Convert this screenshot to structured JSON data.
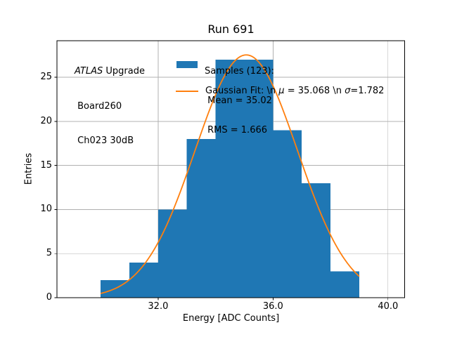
{
  "title": "Run 691",
  "annotation": {
    "line1_italic": "ATLAS",
    "line1_rest": " Upgrade",
    "line2": " Board260",
    "line3": " Ch023 30dB"
  },
  "legend": {
    "samples_line": "Samples (123):",
    "mean_line": " Mean = 35.02",
    "rms_line": " RMS = 1.666",
    "fit_segments": [
      {
        "text": "Gaussian Fit: \\n ",
        "italic": false
      },
      {
        "text": "μ",
        "italic": true
      },
      {
        "text": " = 35.068 \\n ",
        "italic": false
      },
      {
        "text": "σ",
        "italic": true
      },
      {
        "text": "=1.782",
        "italic": false
      }
    ]
  },
  "chart_data": {
    "type": "bar",
    "subtype": "histogram-with-gaussian-fit",
    "title": "Run 691",
    "xlabel": "Energy [ADC Counts]",
    "ylabel": "Entries",
    "bin_edges": [
      30,
      31,
      32,
      33,
      34,
      35,
      36,
      37,
      38,
      39
    ],
    "counts": [
      2,
      4,
      10,
      18,
      27,
      27,
      19,
      13,
      3
    ],
    "samples": 123,
    "mean": 35.02,
    "rms": 1.666,
    "fit": {
      "type": "gaussian",
      "mu": 35.068,
      "sigma": 1.782,
      "amplitude": 27.54,
      "x_range": [
        30,
        39
      ]
    },
    "xlim": [
      28.48,
      40.58
    ],
    "ylim": [
      0,
      29.15
    ],
    "xticks": [
      32.0,
      36.0,
      40.0
    ],
    "xtick_labels": [
      "32.0",
      "36.0",
      "40.0"
    ],
    "yticks": [
      0,
      5,
      10,
      15,
      20,
      25
    ],
    "ytick_labels": [
      "0",
      "5",
      "10",
      "15",
      "20",
      "25"
    ],
    "grid": true,
    "legend_position": "upper center, frameless",
    "legend_entries": [
      {
        "handle": "patch",
        "color": "#1f77b4",
        "label": "Samples (123):\n Mean = 35.02\n RMS = 1.666"
      },
      {
        "handle": "line",
        "color": "#ff7f0e",
        "label": "Gaussian Fit: \\n μ = 35.068 \\n σ=1.782"
      }
    ],
    "annotation_text": "ATLAS Upgrade\n Board260\n Ch023 30dB",
    "colors": {
      "hist": "#1f77b4",
      "fit": "#ff7f0e",
      "grid": "#b0b0b0",
      "spine": "#000000",
      "text": "#000000",
      "background": "#ffffff"
    }
  }
}
